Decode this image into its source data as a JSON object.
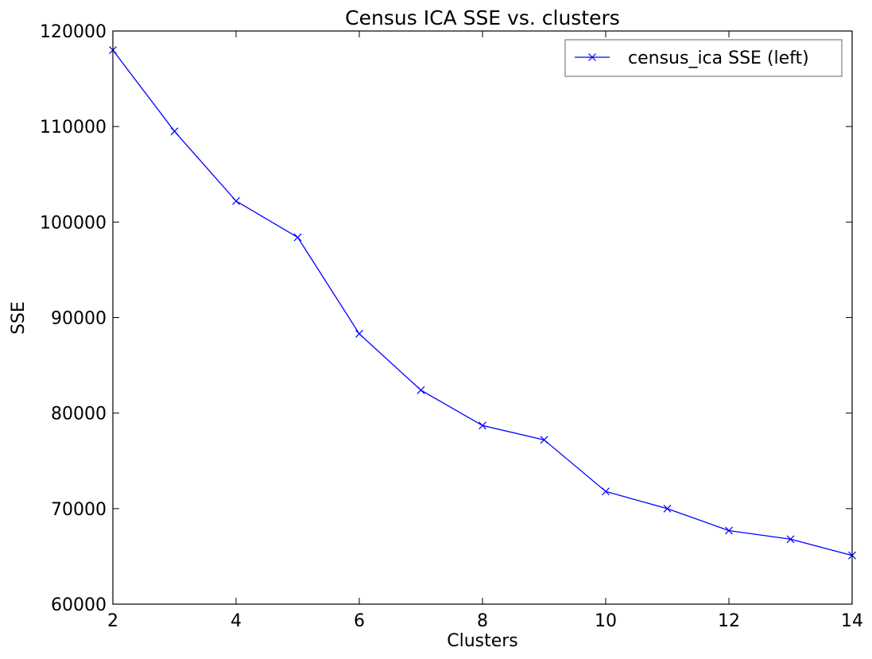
{
  "chart_data": {
    "type": "line",
    "title": "Census ICA SSE vs. clusters",
    "xlabel": "Clusters",
    "ylabel": "SSE",
    "xlim": [
      2,
      14
    ],
    "ylim": [
      60000,
      120000
    ],
    "xticks": [
      2,
      4,
      6,
      8,
      10,
      12,
      14
    ],
    "yticks": [
      60000,
      70000,
      80000,
      90000,
      100000,
      110000,
      120000
    ],
    "grid": false,
    "legend_position": "top-right",
    "series": [
      {
        "name": "census_ica SSE (left)",
        "color": "#0000ff",
        "marker": "x",
        "x": [
          2,
          3,
          4,
          5,
          6,
          7,
          8,
          9,
          10,
          11,
          12,
          13,
          14
        ],
        "y": [
          118000,
          109500,
          102200,
          98400,
          88300,
          82400,
          78700,
          77200,
          71800,
          70000,
          67700,
          66800,
          65100
        ]
      }
    ]
  }
}
